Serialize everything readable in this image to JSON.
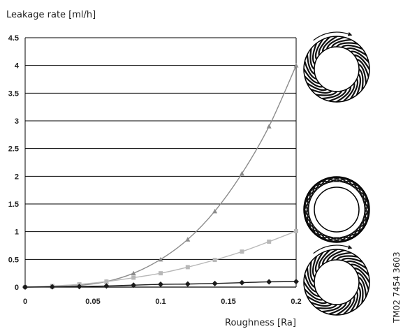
{
  "chart_data": {
    "type": "line",
    "ylabel": "Leakage rate [ml/h]",
    "xlabel": "Roughness [Ra]",
    "xlim": [
      0,
      0.2
    ],
    "ylim": [
      0,
      4.5
    ],
    "x_ticks": [
      "0",
      "0.05",
      "0.1",
      "0.15",
      "0.2"
    ],
    "y_ticks": [
      "0",
      "0.5",
      "1",
      "1.5",
      "2",
      "2.5",
      "3",
      "3.5",
      "4",
      "4.5"
    ],
    "grid": "horizontal",
    "series": [
      {
        "marker": "triangle",
        "color": "#8c8c8c",
        "points": [
          [
            0,
            0
          ],
          [
            0.02,
            0.01
          ],
          [
            0.04,
            0.03
          ],
          [
            0.06,
            0.1
          ],
          [
            0.08,
            0.25
          ],
          [
            0.1,
            0.5
          ],
          [
            0.12,
            0.86
          ],
          [
            0.14,
            1.37
          ],
          [
            0.16,
            2.05
          ],
          [
            0.18,
            2.9
          ],
          [
            0.2,
            4.0
          ]
        ]
      },
      {
        "marker": "square",
        "color": "#b8b8b8",
        "points": [
          [
            0,
            0
          ],
          [
            0.02,
            0.02
          ],
          [
            0.04,
            0.05
          ],
          [
            0.06,
            0.1
          ],
          [
            0.08,
            0.17
          ],
          [
            0.1,
            0.25
          ],
          [
            0.12,
            0.36
          ],
          [
            0.14,
            0.49
          ],
          [
            0.16,
            0.64
          ],
          [
            0.18,
            0.82
          ],
          [
            0.2,
            1.01
          ]
        ]
      },
      {
        "marker": "diamond",
        "color": "#1a1a1a",
        "points": [
          [
            0,
            0
          ],
          [
            0.02,
            0.005
          ],
          [
            0.04,
            0.01
          ],
          [
            0.06,
            0.02
          ],
          [
            0.08,
            0.035
          ],
          [
            0.1,
            0.05
          ],
          [
            0.12,
            0.055
          ],
          [
            0.14,
            0.065
          ],
          [
            0.16,
            0.08
          ],
          [
            0.18,
            0.095
          ],
          [
            0.2,
            0.1
          ]
        ]
      }
    ]
  },
  "figure_code": "TM02 7454 3603",
  "illustrations": [
    {
      "icon": "unidirectional-grooved-seal-ring-icon"
    },
    {
      "icon": "crosshatched-seal-ring-icon"
    },
    {
      "icon": "unidirectional-grooved-seal-ring-icon"
    }
  ]
}
